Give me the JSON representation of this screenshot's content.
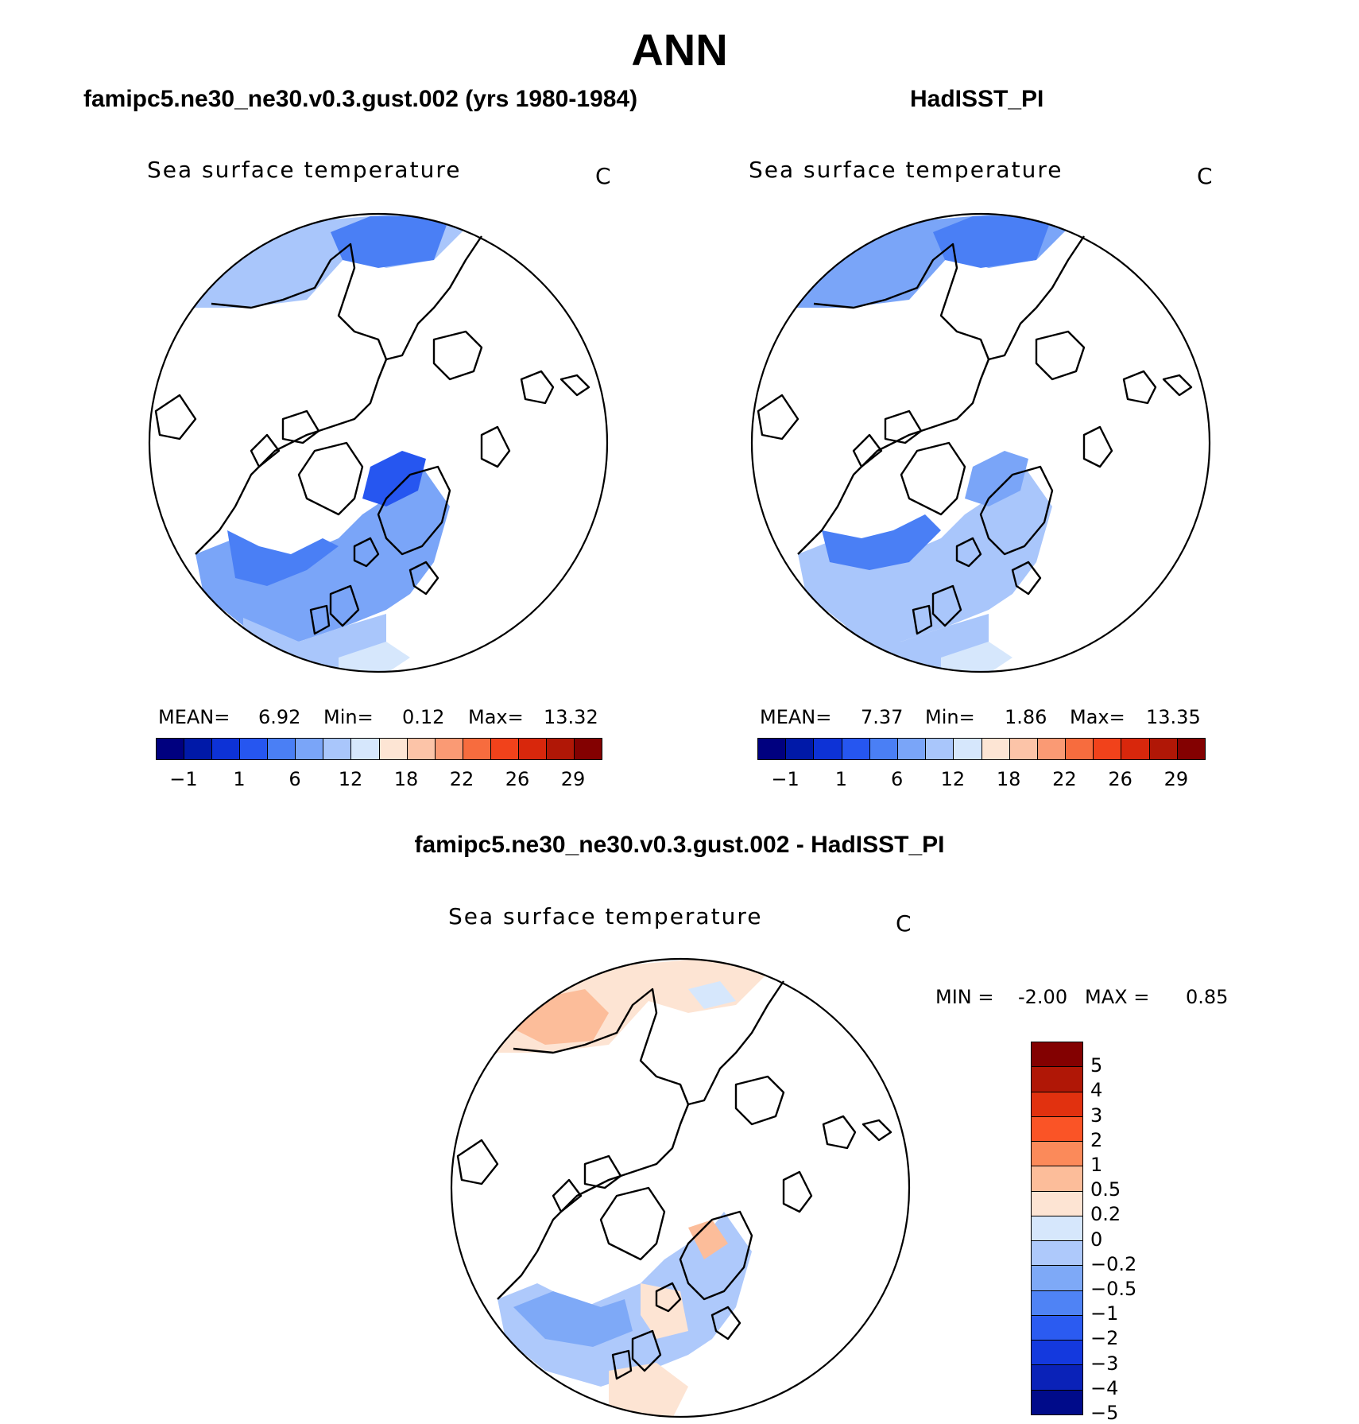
{
  "figure": {
    "title": "ANN",
    "panel_left_title": "famipc5.ne30_ne30.v0.3.gust.002 (yrs 1980-1984)",
    "panel_right_title": "HadISST_PI",
    "panel_diff_title": "famipc5.ne30_ne30.v0.3.gust.002 - HadISST_PI"
  },
  "chart_data": [
    {
      "type": "heatmap",
      "projection": "north-polar-stereographic",
      "title": "famipc5.ne30_ne30.v0.3.gust.002 (yrs 1980-1984)",
      "label": "Sea surface temperature",
      "units": "C",
      "stats": {
        "mean_label": "MEAN=",
        "mean": "6.92",
        "min_label": "Min=",
        "min": "0.12",
        "max_label": "Max=",
        "max": "13.32"
      },
      "colorbar": {
        "orientation": "horizontal",
        "colors": [
          "#00007f",
          "#0019a8",
          "#0d32d6",
          "#2656f0",
          "#4a7ff5",
          "#7aa5f8",
          "#a9c6fb",
          "#d6e7fc",
          "#fde5d4",
          "#fcc4a8",
          "#fa9a74",
          "#f76c3e",
          "#f1421b",
          "#d8270c",
          "#b01706",
          "#830101"
        ],
        "tick_labels": [
          "-1",
          "1",
          "6",
          "12",
          "18",
          "22",
          "26",
          "29"
        ]
      }
    },
    {
      "type": "heatmap",
      "projection": "north-polar-stereographic",
      "title": "HadISST_PI",
      "label": "Sea surface temperature",
      "units": "C",
      "stats": {
        "mean_label": "MEAN=",
        "mean": "7.37",
        "min_label": "Min=",
        "min": "1.86",
        "max_label": "Max=",
        "max": "13.35"
      },
      "colorbar": {
        "orientation": "horizontal",
        "colors": [
          "#00007f",
          "#0019a8",
          "#0d32d6",
          "#2656f0",
          "#4a7ff5",
          "#7aa5f8",
          "#a9c6fb",
          "#d6e7fc",
          "#fde5d4",
          "#fcc4a8",
          "#fa9a74",
          "#f76c3e",
          "#f1421b",
          "#d8270c",
          "#b01706",
          "#830101"
        ],
        "tick_labels": [
          "-1",
          "1",
          "6",
          "12",
          "18",
          "22",
          "26",
          "29"
        ]
      }
    },
    {
      "type": "heatmap",
      "projection": "north-polar-stereographic",
      "title": "famipc5.ne30_ne30.v0.3.gust.002 - HadISST_PI",
      "label": "Sea surface temperature",
      "units": "C",
      "stats": {
        "min_label": "MIN =",
        "min": "-2.00",
        "max_label": "MAX =",
        "max": "0.85"
      },
      "colorbar": {
        "orientation": "vertical",
        "colors": [
          "#830101",
          "#b01706",
          "#e1310f",
          "#fa5426",
          "#fb8a5a",
          "#fcbd9a",
          "#fde4d3",
          "#d6e7fc",
          "#aec9fb",
          "#7ea9f7",
          "#4f83f5",
          "#2b5bf1",
          "#1439de",
          "#0a22b8",
          "#000b8a"
        ],
        "tick_labels": [
          "5",
          "4",
          "3",
          "2",
          "1",
          "0.5",
          "0.2",
          "0",
          "-0.2",
          "-0.5",
          "-1",
          "-2",
          "-3",
          "-4",
          "-5"
        ]
      }
    }
  ]
}
